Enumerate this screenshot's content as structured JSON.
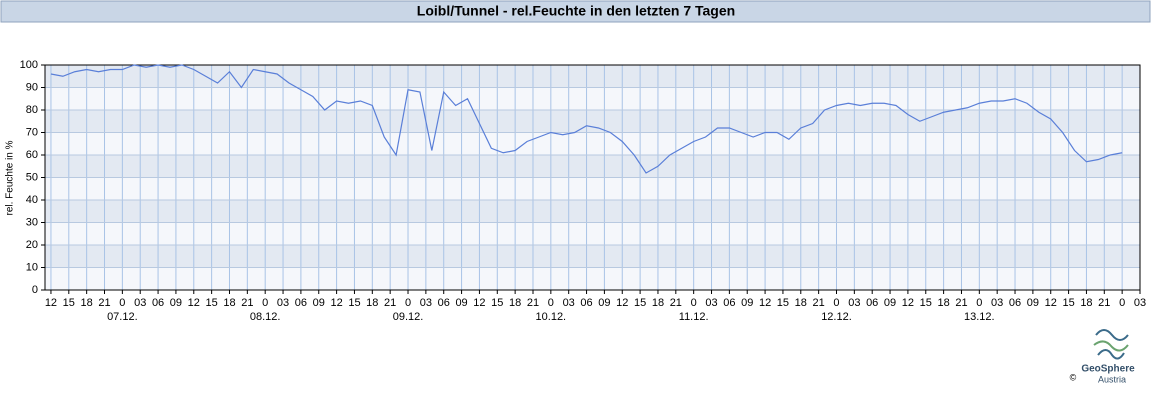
{
  "chart_data": {
    "type": "line",
    "title": "Loibl/Tunnel - rel.Feuchte in den letzten 7 Tagen",
    "ylabel": "rel. Feuchte in %",
    "x": [
      0,
      2,
      4,
      6,
      8,
      10,
      12,
      14,
      16,
      18,
      20,
      22,
      24,
      26,
      28,
      30,
      32,
      34,
      36,
      38,
      40,
      42,
      44,
      46,
      48,
      50,
      52,
      54,
      56,
      58,
      60,
      62,
      64,
      66,
      68,
      70,
      72,
      74,
      76,
      78,
      80,
      82,
      84,
      86,
      88,
      90,
      92,
      94,
      96,
      98,
      100,
      102,
      104,
      106,
      108,
      110,
      112,
      114,
      116,
      118,
      120,
      122,
      124,
      126,
      128,
      130,
      132,
      134,
      136,
      138,
      140,
      142,
      144,
      146,
      148,
      150,
      152,
      154,
      156,
      158,
      160,
      162,
      164,
      166,
      168,
      170,
      172,
      174,
      176,
      178,
      180
    ],
    "series": [
      {
        "name": "rel. Feuchte",
        "color": "#5a7fd8",
        "values": [
          96,
          95,
          97,
          98,
          97,
          98,
          98,
          100,
          99,
          100,
          99,
          100,
          98,
          95,
          92,
          97,
          90,
          98,
          97,
          96,
          92,
          89,
          86,
          80,
          84,
          83,
          84,
          82,
          68,
          60,
          89,
          88,
          62,
          88,
          82,
          85,
          74,
          63,
          61,
          62,
          66,
          68,
          70,
          69,
          70,
          73,
          72,
          70,
          66,
          60,
          52,
          55,
          60,
          63,
          66,
          68,
          72,
          72,
          70,
          68,
          70,
          70,
          67,
          72,
          74,
          80,
          82,
          83,
          82,
          83,
          83,
          82,
          78,
          75,
          77,
          79,
          80,
          81,
          83,
          84,
          84,
          85,
          83,
          79,
          76,
          70,
          62,
          57,
          58,
          60,
          61
        ]
      }
    ],
    "xlim": [
      -1,
      183
    ],
    "xticks": [
      {
        "value": 0,
        "label": "12"
      },
      {
        "value": 3,
        "label": "15"
      },
      {
        "value": 6,
        "label": "18"
      },
      {
        "value": 9,
        "label": "21"
      },
      {
        "value": 12,
        "label": "0"
      },
      {
        "value": 15,
        "label": "03"
      },
      {
        "value": 18,
        "label": "06"
      },
      {
        "value": 21,
        "label": "09"
      },
      {
        "value": 24,
        "label": "12"
      },
      {
        "value": 27,
        "label": "15"
      },
      {
        "value": 30,
        "label": "18"
      },
      {
        "value": 33,
        "label": "21"
      },
      {
        "value": 36,
        "label": "0"
      },
      {
        "value": 39,
        "label": "03"
      },
      {
        "value": 42,
        "label": "06"
      },
      {
        "value": 45,
        "label": "09"
      },
      {
        "value": 48,
        "label": "12"
      },
      {
        "value": 51,
        "label": "15"
      },
      {
        "value": 54,
        "label": "18"
      },
      {
        "value": 57,
        "label": "21"
      },
      {
        "value": 60,
        "label": "0"
      },
      {
        "value": 63,
        "label": "03"
      },
      {
        "value": 66,
        "label": "06"
      },
      {
        "value": 69,
        "label": "09"
      },
      {
        "value": 72,
        "label": "12"
      },
      {
        "value": 75,
        "label": "15"
      },
      {
        "value": 78,
        "label": "18"
      },
      {
        "value": 81,
        "label": "21"
      },
      {
        "value": 84,
        "label": "0"
      },
      {
        "value": 87,
        "label": "03"
      },
      {
        "value": 90,
        "label": "06"
      },
      {
        "value": 93,
        "label": "09"
      },
      {
        "value": 96,
        "label": "12"
      },
      {
        "value": 99,
        "label": "15"
      },
      {
        "value": 102,
        "label": "18"
      },
      {
        "value": 105,
        "label": "21"
      },
      {
        "value": 108,
        "label": "0"
      },
      {
        "value": 111,
        "label": "03"
      },
      {
        "value": 114,
        "label": "06"
      },
      {
        "value": 117,
        "label": "09"
      },
      {
        "value": 120,
        "label": "12"
      },
      {
        "value": 123,
        "label": "15"
      },
      {
        "value": 126,
        "label": "18"
      },
      {
        "value": 129,
        "label": "21"
      },
      {
        "value": 132,
        "label": "0"
      },
      {
        "value": 135,
        "label": "03"
      },
      {
        "value": 138,
        "label": "06"
      },
      {
        "value": 141,
        "label": "09"
      },
      {
        "value": 144,
        "label": "12"
      },
      {
        "value": 147,
        "label": "15"
      },
      {
        "value": 150,
        "label": "18"
      },
      {
        "value": 153,
        "label": "21"
      },
      {
        "value": 156,
        "label": "0"
      },
      {
        "value": 159,
        "label": "03"
      },
      {
        "value": 162,
        "label": "06"
      },
      {
        "value": 165,
        "label": "09"
      },
      {
        "value": 168,
        "label": "12"
      },
      {
        "value": 171,
        "label": "15"
      },
      {
        "value": 174,
        "label": "18"
      },
      {
        "value": 177,
        "label": "21"
      },
      {
        "value": 180,
        "label": "0"
      },
      {
        "value": 183,
        "label": "03"
      }
    ],
    "date_ticks": [
      {
        "value": 12,
        "label": "07.12."
      },
      {
        "value": 36,
        "label": "08.12."
      },
      {
        "value": 60,
        "label": "09.12."
      },
      {
        "value": 84,
        "label": "10.12."
      },
      {
        "value": 108,
        "label": "11.12."
      },
      {
        "value": 132,
        "label": "12.12."
      },
      {
        "value": 156,
        "label": "13.12."
      }
    ],
    "ylim": [
      0,
      100
    ],
    "yticks": [
      0,
      10,
      20,
      30,
      40,
      50,
      60,
      70,
      80,
      90,
      100
    ],
    "grid": true,
    "logo": {
      "name": "GeoSphere",
      "sub": "Austria",
      "copyright": "©"
    }
  }
}
